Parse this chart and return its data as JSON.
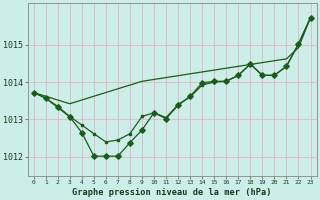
{
  "title": "Graphe pression niveau de la mer (hPa)",
  "background_color": "#cceee8",
  "grid_color": "#e8b4c0",
  "line_color": "#1a5c1a",
  "x_ticks": [
    0,
    1,
    2,
    3,
    4,
    5,
    6,
    7,
    8,
    9,
    10,
    11,
    12,
    13,
    14,
    15,
    16,
    17,
    18,
    19,
    20,
    21,
    22,
    23
  ],
  "ylim": [
    1011.5,
    1016.1
  ],
  "yticks": [
    1012,
    1013,
    1014,
    1015
  ],
  "series1_x": [
    0,
    1,
    2,
    3,
    4,
    5,
    6,
    7,
    8,
    9,
    10,
    11,
    12,
    13,
    14,
    15,
    16,
    17,
    18,
    19,
    20,
    21,
    22,
    23
  ],
  "series1_y": [
    1013.72,
    1013.62,
    1013.52,
    1013.42,
    1013.52,
    1013.62,
    1013.72,
    1013.82,
    1013.92,
    1014.02,
    1014.07,
    1014.12,
    1014.17,
    1014.22,
    1014.27,
    1014.32,
    1014.37,
    1014.42,
    1014.47,
    1014.52,
    1014.57,
    1014.62,
    1014.92,
    1015.72
  ],
  "series2_x": [
    0,
    1,
    2,
    3,
    4,
    5,
    6,
    7,
    8,
    9,
    10,
    11,
    12,
    13,
    14,
    15,
    16,
    17,
    18,
    19,
    20,
    21,
    22,
    23
  ],
  "series2_y": [
    1013.72,
    1013.57,
    1013.35,
    1013.08,
    1012.85,
    1012.62,
    1012.4,
    1012.45,
    1012.62,
    1013.08,
    1013.18,
    1013.05,
    1013.4,
    1013.6,
    1013.92,
    1014.0,
    1014.02,
    1014.18,
    1014.48,
    1014.18,
    1014.18,
    1014.42,
    1015.02,
    1015.72
  ],
  "series3_x": [
    0,
    1,
    2,
    3,
    4,
    5,
    6,
    7,
    8,
    9,
    10,
    11,
    12,
    13,
    14,
    15,
    16,
    17,
    18,
    19,
    20,
    21,
    22,
    23
  ],
  "series3_y": [
    1013.72,
    1013.57,
    1013.32,
    1013.07,
    1012.65,
    1012.02,
    1012.02,
    1012.02,
    1012.38,
    1012.72,
    1013.18,
    1013.02,
    1013.38,
    1013.62,
    1013.98,
    1014.02,
    1014.02,
    1014.18,
    1014.48,
    1014.18,
    1014.18,
    1014.42,
    1015.02,
    1015.72
  ]
}
